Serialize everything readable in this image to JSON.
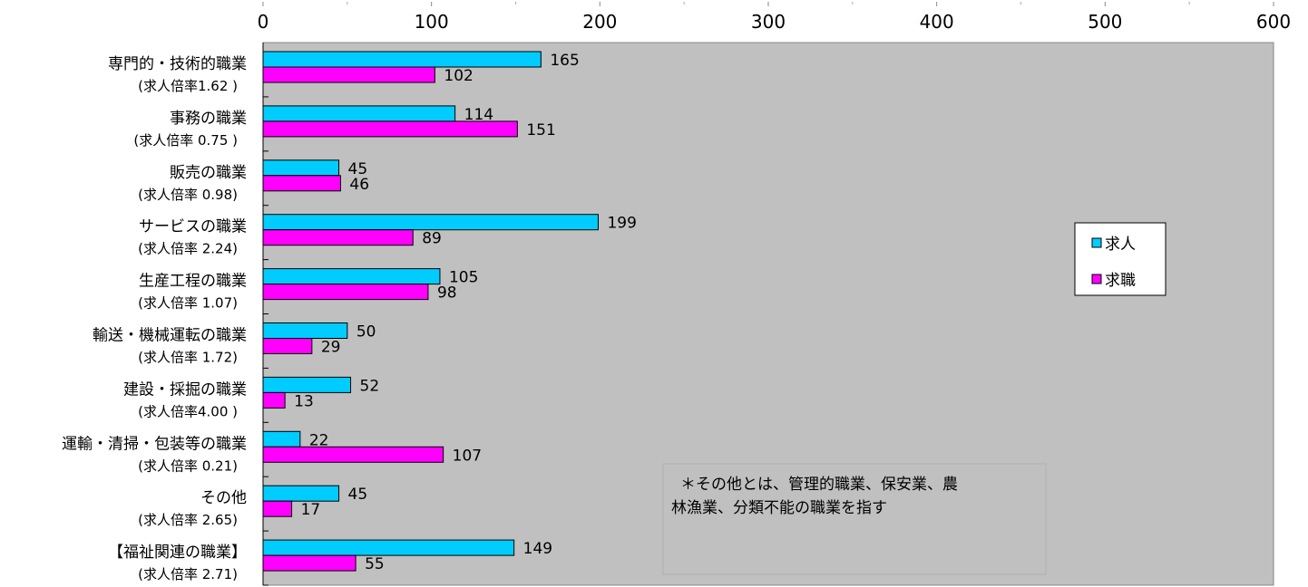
{
  "chart_data": {
    "type": "bar",
    "orientation": "horizontal",
    "xlim": [
      0,
      600
    ],
    "x_ticks": [
      0,
      100,
      200,
      300,
      400,
      500,
      600
    ],
    "grid": false,
    "legend_position": "right",
    "categories": [
      {
        "name": "専門的・技術的職業",
        "ratio_label": "(求人倍率1.62 )"
      },
      {
        "name": "事務の職業",
        "ratio_label": "(求人倍率 0.75 )"
      },
      {
        "name": "販売の職業",
        "ratio_label": "(求人倍率 0.98)"
      },
      {
        "name": "サービスの職業",
        "ratio_label": "(求人倍率 2.24)"
      },
      {
        "name": "生産工程の職業",
        "ratio_label": "(求人倍率 1.07)"
      },
      {
        "name": "輸送・機械運転の職業",
        "ratio_label": "(求人倍率 1.72)"
      },
      {
        "name": "建設・採掘の職業",
        "ratio_label": "(求人倍率4.00 )"
      },
      {
        "name": "運輸・清掃・包装等の職業",
        "ratio_label": "(求人倍率 0.21)"
      },
      {
        "name": "その他",
        "ratio_label": "(求人倍率 2.65)"
      },
      {
        "name": "【福祉関連の職業】",
        "ratio_label": "(求人倍率 2.71)"
      }
    ],
    "series": [
      {
        "name": "求人",
        "color": "#00ccff",
        "values": [
          165,
          114,
          45,
          199,
          105,
          50,
          52,
          22,
          45,
          149
        ]
      },
      {
        "name": "求職",
        "color": "#ff00ff",
        "values": [
          102,
          151,
          46,
          89,
          98,
          29,
          13,
          107,
          17,
          55
        ]
      }
    ],
    "annotation": {
      "line1": "＊その他とは、管理的職業、保安業、農",
      "line2": "林漁業、分類不能の職業を指す"
    },
    "colors": {
      "plot_background": "#c0c0c0",
      "bar_outline": "#000000"
    }
  }
}
